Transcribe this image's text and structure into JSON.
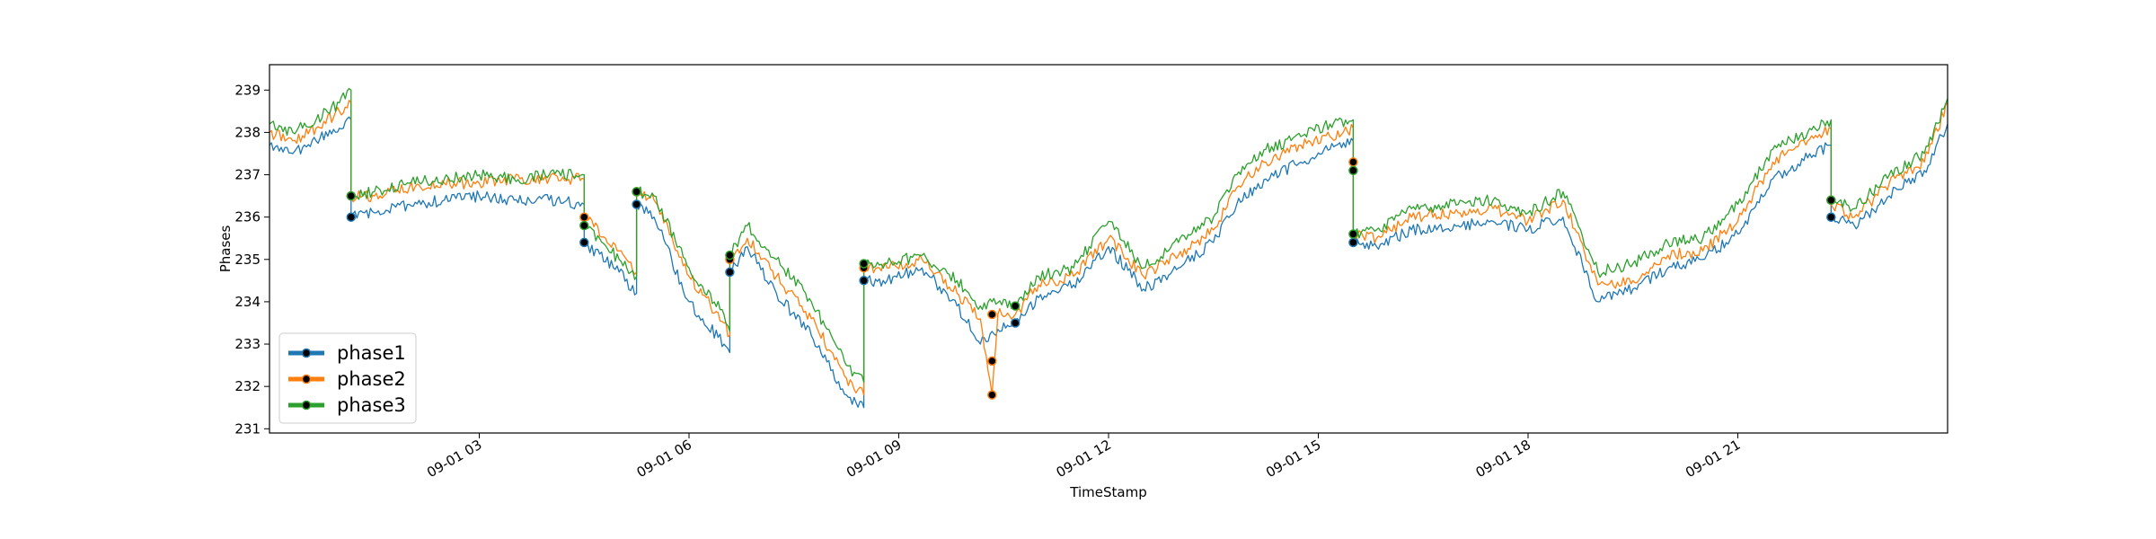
{
  "chart_data": {
    "type": "line",
    "title": "",
    "xlabel": "TimeStamp",
    "ylabel": "Phases",
    "xlim": [
      "2024-09-01 00:00",
      "2024-09-02 00:00"
    ],
    "ylim": [
      230.9,
      239.6
    ],
    "x_ticks": [
      {
        "value": "2024-09-01 03:00",
        "label": "09-01 03"
      },
      {
        "value": "2024-09-01 06:00",
        "label": "09-01 06"
      },
      {
        "value": "2024-09-01 09:00",
        "label": "09-01 09"
      },
      {
        "value": "2024-09-01 12:00",
        "label": "09-01 12"
      },
      {
        "value": "2024-09-01 15:00",
        "label": "09-01 15"
      },
      {
        "value": "2024-09-01 18:00",
        "label": "09-01 18"
      },
      {
        "value": "2024-09-01 21:00",
        "label": "09-01 21"
      }
    ],
    "y_ticks": [
      231,
      232,
      233,
      234,
      235,
      236,
      237,
      238,
      239
    ],
    "grid": false,
    "legend": {
      "placement": "lower-left",
      "entries": [
        "phase1",
        "phase2",
        "phase3"
      ]
    },
    "series": [
      {
        "name": "phase1",
        "color": "#1f77b4",
        "points": [
          [
            "2024-09-01 00:00",
            237.7
          ],
          [
            "2024-09-01 00:20",
            237.5
          ],
          [
            "2024-09-01 00:40",
            237.8
          ],
          [
            "2024-09-01 01:00",
            238.1
          ],
          [
            "2024-09-01 01:10",
            238.3
          ],
          [
            "2024-09-01 01:10",
            236.0
          ],
          [
            "2024-09-01 01:30",
            236.1
          ],
          [
            "2024-09-01 02:00",
            236.3
          ],
          [
            "2024-09-01 02:30",
            236.4
          ],
          [
            "2024-09-01 03:00",
            236.5
          ],
          [
            "2024-09-01 03:30",
            236.4
          ],
          [
            "2024-09-01 04:00",
            236.4
          ],
          [
            "2024-09-01 04:30",
            236.3
          ],
          [
            "2024-09-01 04:30",
            235.4
          ],
          [
            "2024-09-01 05:00",
            234.7
          ],
          [
            "2024-09-01 05:15",
            234.2
          ],
          [
            "2024-09-01 05:15",
            236.3
          ],
          [
            "2024-09-01 05:30",
            236.0
          ],
          [
            "2024-09-01 06:00",
            234.0
          ],
          [
            "2024-09-01 06:30",
            233.0
          ],
          [
            "2024-09-01 06:35",
            232.8
          ],
          [
            "2024-09-01 06:35",
            234.7
          ],
          [
            "2024-09-01 06:50",
            235.3
          ],
          [
            "2024-09-01 07:15",
            234.2
          ],
          [
            "2024-09-01 07:45",
            233.2
          ],
          [
            "2024-09-01 08:15",
            231.8
          ],
          [
            "2024-09-01 08:30",
            231.5
          ],
          [
            "2024-09-01 08:30",
            234.5
          ],
          [
            "2024-09-01 08:50",
            234.5
          ],
          [
            "2024-09-01 09:20",
            234.8
          ],
          [
            "2024-09-01 09:50",
            233.9
          ],
          [
            "2024-09-01 10:10",
            233.0
          ],
          [
            "2024-09-01 10:20",
            233.3
          ],
          [
            "2024-09-01 10:40",
            233.5
          ],
          [
            "2024-09-01 11:00",
            234.1
          ],
          [
            "2024-09-01 11:30",
            234.4
          ],
          [
            "2024-09-01 12:00",
            235.3
          ],
          [
            "2024-09-01 12:30",
            234.3
          ],
          [
            "2024-09-01 13:00",
            234.8
          ],
          [
            "2024-09-01 13:30",
            235.4
          ],
          [
            "2024-09-01 13:50",
            236.3
          ],
          [
            "2024-09-01 14:15",
            236.9
          ],
          [
            "2024-09-01 14:45",
            237.3
          ],
          [
            "2024-09-01 15:10",
            237.6
          ],
          [
            "2024-09-01 15:30",
            237.8
          ],
          [
            "2024-09-01 15:30",
            235.4
          ],
          [
            "2024-09-01 15:50",
            235.3
          ],
          [
            "2024-09-01 16:20",
            235.7
          ],
          [
            "2024-09-01 17:00",
            235.8
          ],
          [
            "2024-09-01 17:30",
            235.9
          ],
          [
            "2024-09-01 18:00",
            235.7
          ],
          [
            "2024-09-01 18:30",
            236.0
          ],
          [
            "2024-09-01 19:00",
            234.0
          ],
          [
            "2024-09-01 19:30",
            234.3
          ],
          [
            "2024-09-01 20:00",
            234.8
          ],
          [
            "2024-09-01 20:30",
            235.0
          ],
          [
            "2024-09-01 21:00",
            235.6
          ],
          [
            "2024-09-01 21:30",
            236.9
          ],
          [
            "2024-09-01 22:00",
            237.4
          ],
          [
            "2024-09-01 22:20",
            237.7
          ],
          [
            "2024-09-01 22:20",
            236.0
          ],
          [
            "2024-09-01 22:40",
            235.8
          ],
          [
            "2024-09-01 23:10",
            236.5
          ],
          [
            "2024-09-01 23:40",
            237.1
          ],
          [
            "2024-09-02 00:00",
            238.2
          ]
        ]
      },
      {
        "name": "phase2",
        "color": "#ff7f0e",
        "points": [
          [
            "2024-09-01 00:00",
            238.0
          ],
          [
            "2024-09-01 00:20",
            237.8
          ],
          [
            "2024-09-01 00:40",
            238.1
          ],
          [
            "2024-09-01 01:00",
            238.5
          ],
          [
            "2024-09-01 01:10",
            238.7
          ],
          [
            "2024-09-01 01:10",
            236.5
          ],
          [
            "2024-09-01 01:30",
            236.5
          ],
          [
            "2024-09-01 02:00",
            236.7
          ],
          [
            "2024-09-01 02:30",
            236.8
          ],
          [
            "2024-09-01 03:00",
            236.8
          ],
          [
            "2024-09-01 03:30",
            236.9
          ],
          [
            "2024-09-01 04:00",
            236.9
          ],
          [
            "2024-09-01 04:30",
            236.9
          ],
          [
            "2024-09-01 04:30",
            236.0
          ],
          [
            "2024-09-01 05:00",
            235.2
          ],
          [
            "2024-09-01 05:15",
            234.7
          ],
          [
            "2024-09-01 05:15",
            236.6
          ],
          [
            "2024-09-01 05:30",
            236.4
          ],
          [
            "2024-09-01 06:00",
            234.6
          ],
          [
            "2024-09-01 06:30",
            233.5
          ],
          [
            "2024-09-01 06:35",
            233.2
          ],
          [
            "2024-09-01 06:35",
            235.0
          ],
          [
            "2024-09-01 06:50",
            235.5
          ],
          [
            "2024-09-01 07:15",
            234.6
          ],
          [
            "2024-09-01 07:45",
            233.6
          ],
          [
            "2024-09-01 08:15",
            232.2
          ],
          [
            "2024-09-01 08:30",
            231.8
          ],
          [
            "2024-09-01 08:30",
            234.8
          ],
          [
            "2024-09-01 08:50",
            234.8
          ],
          [
            "2024-09-01 09:20",
            235.0
          ],
          [
            "2024-09-01 09:50",
            234.2
          ],
          [
            "2024-09-01 10:10",
            233.6
          ],
          [
            "2024-09-01 10:20",
            231.8
          ],
          [
            "2024-09-01 10:25",
            233.7
          ],
          [
            "2024-09-01 10:40",
            233.7
          ],
          [
            "2024-09-01 11:00",
            234.4
          ],
          [
            "2024-09-01 11:30",
            234.6
          ],
          [
            "2024-09-01 12:00",
            235.5
          ],
          [
            "2024-09-01 12:30",
            234.6
          ],
          [
            "2024-09-01 13:00",
            235.1
          ],
          [
            "2024-09-01 13:30",
            235.7
          ],
          [
            "2024-09-01 13:50",
            236.7
          ],
          [
            "2024-09-01 14:15",
            237.3
          ],
          [
            "2024-09-01 14:45",
            237.7
          ],
          [
            "2024-09-01 15:10",
            237.9
          ],
          [
            "2024-09-01 15:30",
            238.1
          ],
          [
            "2024-09-01 15:30",
            235.6
          ],
          [
            "2024-09-01 15:50",
            235.5
          ],
          [
            "2024-09-01 16:20",
            236.0
          ],
          [
            "2024-09-01 17:00",
            236.1
          ],
          [
            "2024-09-01 17:30",
            236.2
          ],
          [
            "2024-09-01 18:00",
            235.9
          ],
          [
            "2024-09-01 18:30",
            236.4
          ],
          [
            "2024-09-01 19:00",
            234.4
          ],
          [
            "2024-09-01 19:30",
            234.5
          ],
          [
            "2024-09-01 20:00",
            235.1
          ],
          [
            "2024-09-01 20:30",
            235.2
          ],
          [
            "2024-09-01 21:00",
            235.9
          ],
          [
            "2024-09-01 21:30",
            237.3
          ],
          [
            "2024-09-01 22:00",
            237.8
          ],
          [
            "2024-09-01 22:20",
            238.1
          ],
          [
            "2024-09-01 22:20",
            236.3
          ],
          [
            "2024-09-01 22:40",
            236.0
          ],
          [
            "2024-09-01 23:10",
            236.8
          ],
          [
            "2024-09-01 23:40",
            237.3
          ],
          [
            "2024-09-02 00:00",
            238.7
          ]
        ]
      },
      {
        "name": "phase3",
        "color": "#2ca02c",
        "points": [
          [
            "2024-09-01 00:00",
            238.2
          ],
          [
            "2024-09-01 00:20",
            238.0
          ],
          [
            "2024-09-01 00:40",
            238.3
          ],
          [
            "2024-09-01 01:00",
            238.7
          ],
          [
            "2024-09-01 01:10",
            239.0
          ],
          [
            "2024-09-01 01:10",
            236.5
          ],
          [
            "2024-09-01 01:30",
            236.6
          ],
          [
            "2024-09-01 02:00",
            236.8
          ],
          [
            "2024-09-01 02:30",
            236.9
          ],
          [
            "2024-09-01 03:00",
            237.0
          ],
          [
            "2024-09-01 03:30",
            236.9
          ],
          [
            "2024-09-01 04:00",
            237.0
          ],
          [
            "2024-09-01 04:30",
            237.0
          ],
          [
            "2024-09-01 04:30",
            235.8
          ],
          [
            "2024-09-01 05:00",
            235.0
          ],
          [
            "2024-09-01 05:15",
            234.6
          ],
          [
            "2024-09-01 05:15",
            236.6
          ],
          [
            "2024-09-01 05:30",
            236.5
          ],
          [
            "2024-09-01 06:00",
            234.8
          ],
          [
            "2024-09-01 06:30",
            233.7
          ],
          [
            "2024-09-01 06:35",
            233.3
          ],
          [
            "2024-09-01 06:35",
            235.1
          ],
          [
            "2024-09-01 06:50",
            235.8
          ],
          [
            "2024-09-01 07:15",
            235.0
          ],
          [
            "2024-09-01 07:45",
            234.0
          ],
          [
            "2024-09-01 08:15",
            232.5
          ],
          [
            "2024-09-01 08:30",
            232.1
          ],
          [
            "2024-09-01 08:30",
            234.9
          ],
          [
            "2024-09-01 08:50",
            234.9
          ],
          [
            "2024-09-01 09:20",
            235.1
          ],
          [
            "2024-09-01 09:50",
            234.5
          ],
          [
            "2024-09-01 10:10",
            233.9
          ],
          [
            "2024-09-01 10:20",
            234.0
          ],
          [
            "2024-09-01 10:40",
            233.9
          ],
          [
            "2024-09-01 11:00",
            234.6
          ],
          [
            "2024-09-01 11:30",
            234.8
          ],
          [
            "2024-09-01 12:00",
            235.9
          ],
          [
            "2024-09-01 12:30",
            234.8
          ],
          [
            "2024-09-01 13:00",
            235.4
          ],
          [
            "2024-09-01 13:30",
            236.0
          ],
          [
            "2024-09-01 13:50",
            237.0
          ],
          [
            "2024-09-01 14:15",
            237.6
          ],
          [
            "2024-09-01 14:45",
            237.9
          ],
          [
            "2024-09-01 15:10",
            238.2
          ],
          [
            "2024-09-01 15:30",
            238.3
          ],
          [
            "2024-09-01 15:30",
            235.6
          ],
          [
            "2024-09-01 15:50",
            235.7
          ],
          [
            "2024-09-01 16:20",
            236.2
          ],
          [
            "2024-09-01 17:00",
            236.3
          ],
          [
            "2024-09-01 17:30",
            236.4
          ],
          [
            "2024-09-01 18:00",
            236.1
          ],
          [
            "2024-09-01 18:30",
            236.6
          ],
          [
            "2024-09-01 19:00",
            234.7
          ],
          [
            "2024-09-01 19:30",
            234.9
          ],
          [
            "2024-09-01 20:00",
            235.4
          ],
          [
            "2024-09-01 20:30",
            235.5
          ],
          [
            "2024-09-01 21:00",
            236.3
          ],
          [
            "2024-09-01 21:30",
            237.6
          ],
          [
            "2024-09-01 22:00",
            238.0
          ],
          [
            "2024-09-01 22:20",
            238.3
          ],
          [
            "2024-09-01 22:20",
            236.4
          ],
          [
            "2024-09-01 22:40",
            236.2
          ],
          [
            "2024-09-01 23:10",
            237.0
          ],
          [
            "2024-09-01 23:40",
            237.5
          ],
          [
            "2024-09-02 00:00",
            238.8
          ]
        ]
      }
    ],
    "markers": [
      {
        "series": "phase1",
        "points": [
          [
            "2024-09-01 01:10",
            236.0
          ],
          [
            "2024-09-01 04:30",
            235.4
          ],
          [
            "2024-09-01 05:15",
            236.3
          ],
          [
            "2024-09-01 06:35",
            234.7
          ],
          [
            "2024-09-01 08:30",
            234.5
          ],
          [
            "2024-09-01 10:40",
            233.5
          ],
          [
            "2024-09-01 15:30",
            235.4
          ],
          [
            "2024-09-01 22:20",
            236.0
          ]
        ]
      },
      {
        "series": "phase2",
        "points": [
          [
            "2024-09-01 01:10",
            236.5
          ],
          [
            "2024-09-01 04:30",
            236.0
          ],
          [
            "2024-09-01 05:15",
            236.6
          ],
          [
            "2024-09-01 06:35",
            235.0
          ],
          [
            "2024-09-01 08:30",
            234.8
          ],
          [
            "2024-09-01 10:20",
            231.8
          ],
          [
            "2024-09-01 10:20",
            232.6
          ],
          [
            "2024-09-01 10:20",
            233.7
          ],
          [
            "2024-09-01 15:30",
            237.3
          ],
          [
            "2024-09-01 22:20",
            236.4
          ]
        ]
      },
      {
        "series": "phase3",
        "points": [
          [
            "2024-09-01 01:10",
            236.5
          ],
          [
            "2024-09-01 04:30",
            235.8
          ],
          [
            "2024-09-01 05:15",
            236.6
          ],
          [
            "2024-09-01 06:35",
            235.1
          ],
          [
            "2024-09-01 08:30",
            234.9
          ],
          [
            "2024-09-01 10:40",
            233.9
          ],
          [
            "2024-09-01 15:30",
            237.1
          ],
          [
            "2024-09-01 15:30",
            235.6
          ],
          [
            "2024-09-01 22:20",
            236.4
          ]
        ]
      }
    ]
  }
}
